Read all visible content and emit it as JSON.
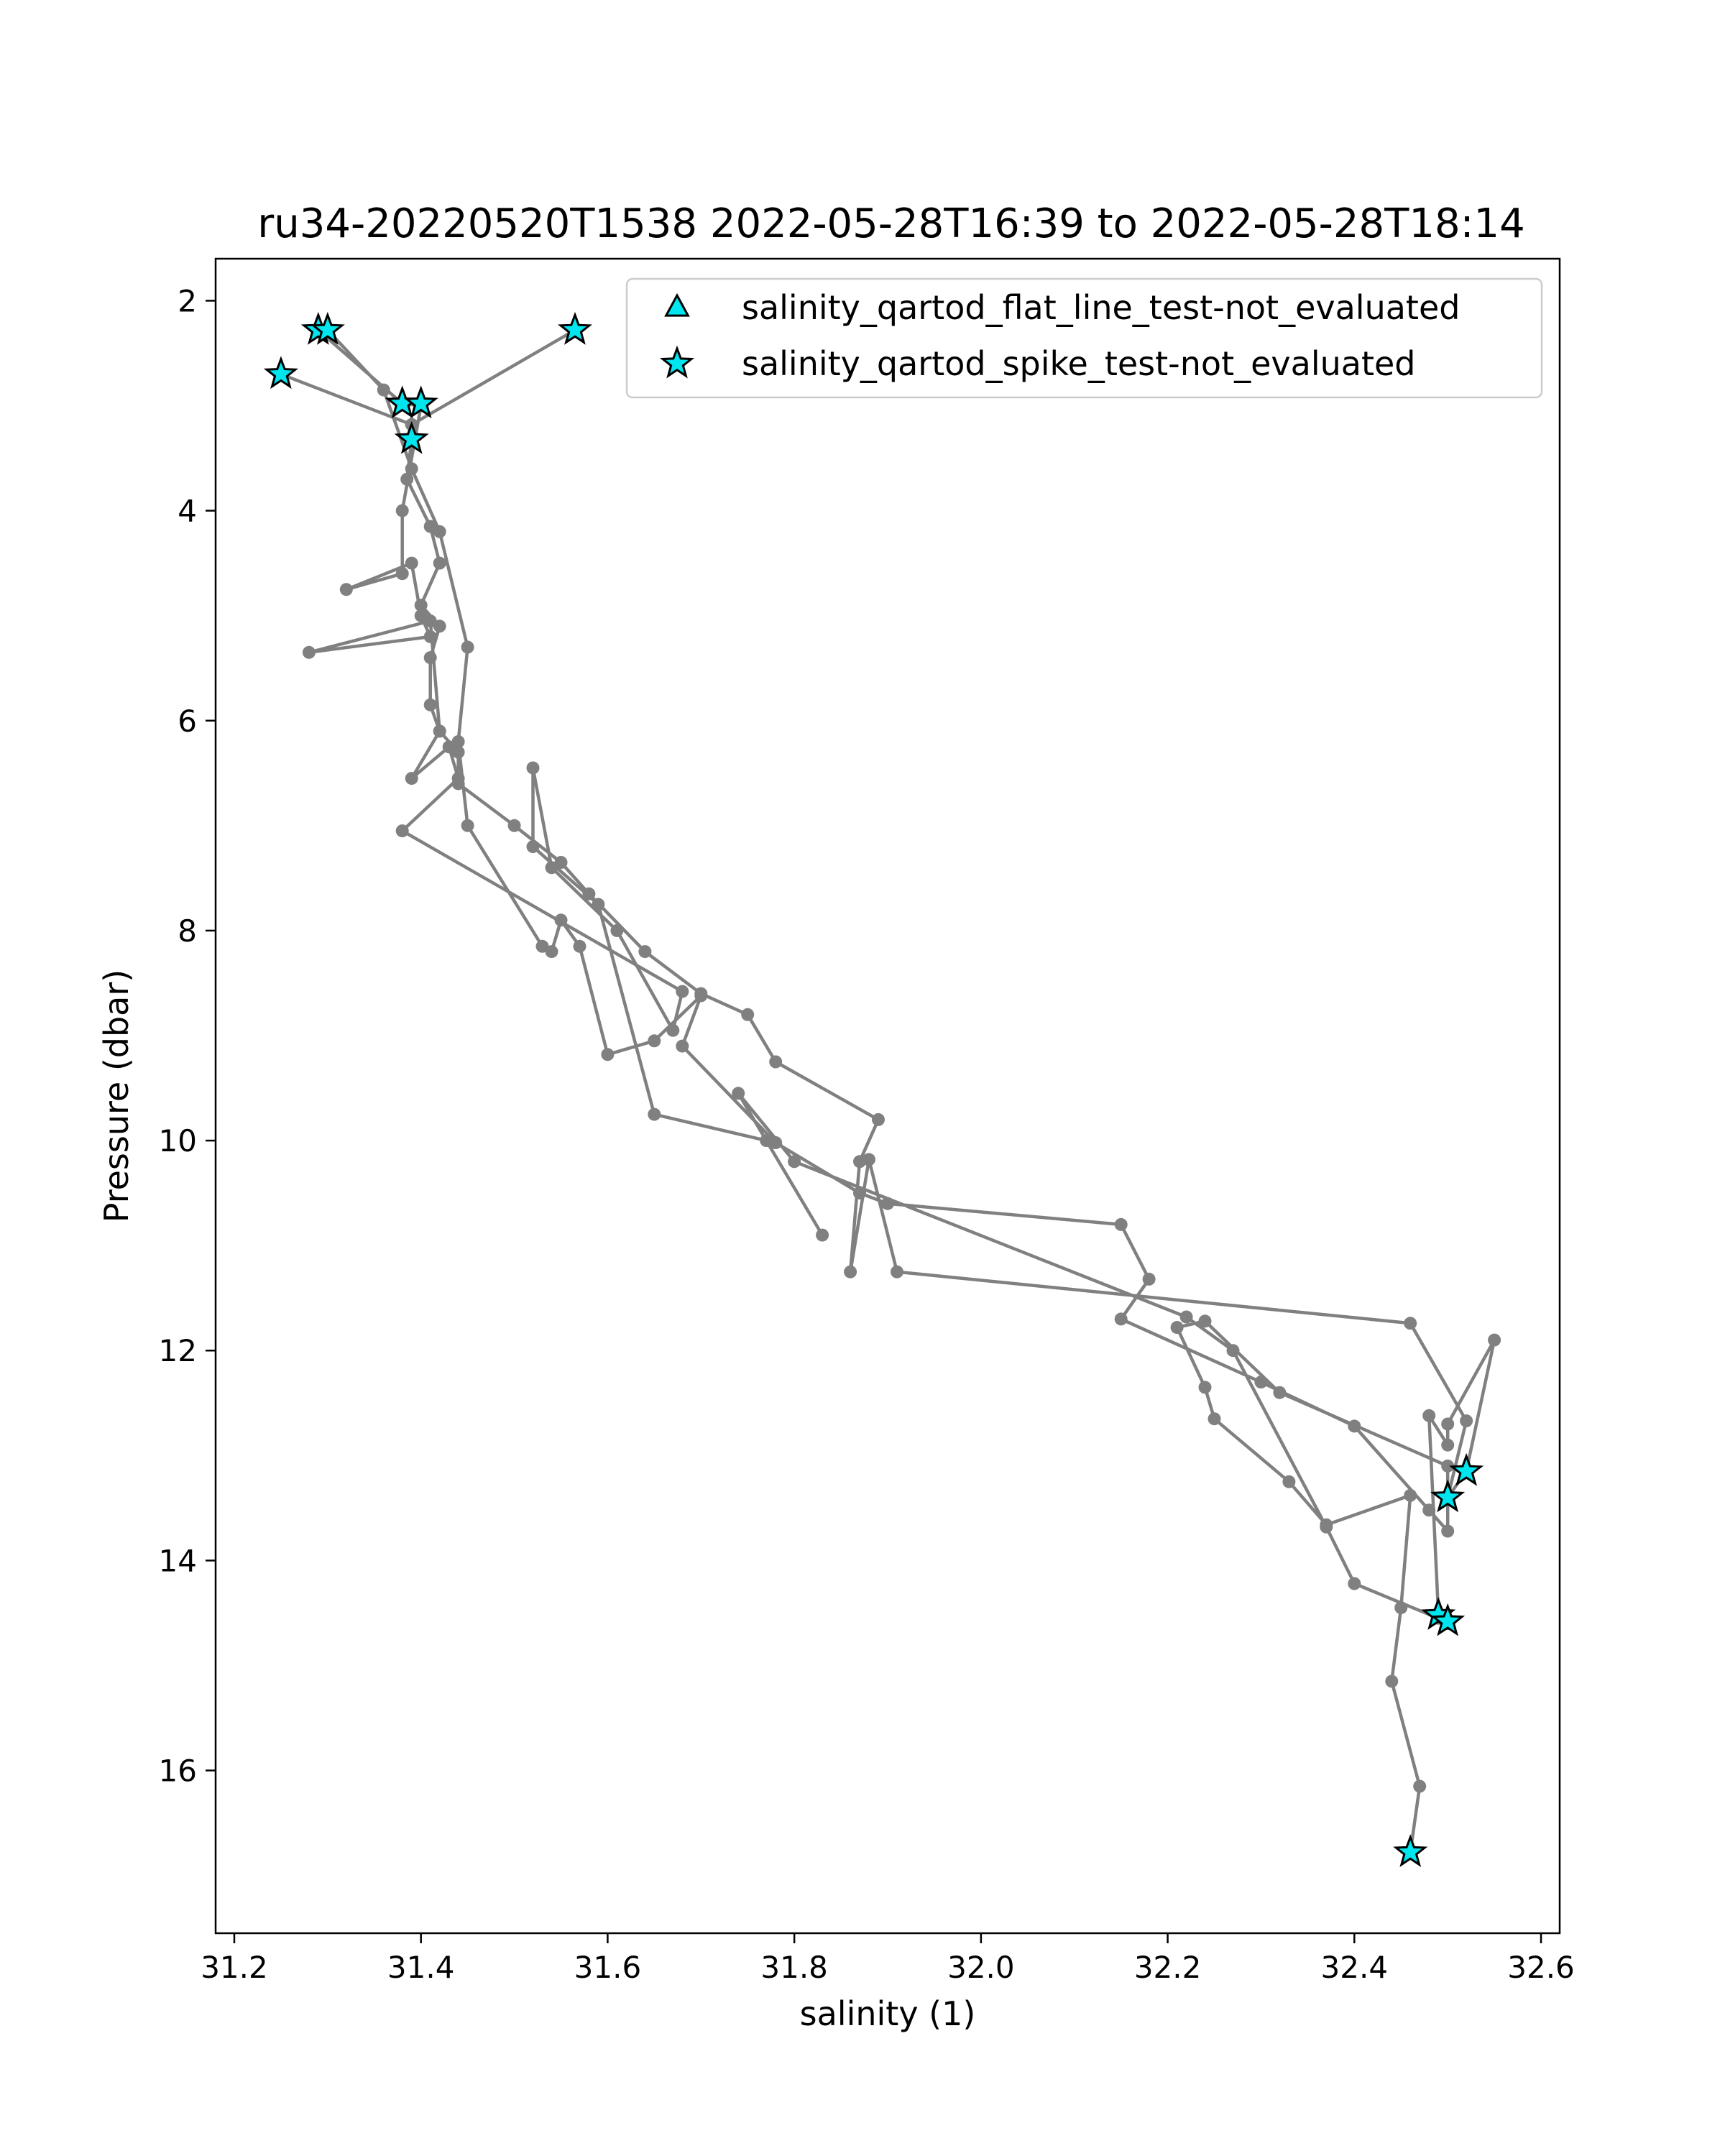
{
  "chart_data": {
    "type": "line",
    "title": "ru34-20220520T1538 2022-05-28T16:39 to 2022-05-28T18:14",
    "xlabel": "salinity (1)",
    "ylabel": "Pressure (dbar)",
    "xlim": [
      31.18,
      32.62
    ],
    "ylim": [
      17.55,
      1.6
    ],
    "y_inverted": true,
    "x_ticks": [
      "31.2",
      "31.4",
      "31.6",
      "31.8",
      "32.0",
      "32.2",
      "32.4",
      "32.6"
    ],
    "y_ticks": [
      "2",
      "4",
      "6",
      "8",
      "10",
      "12",
      "14",
      "16"
    ],
    "grid": false,
    "legend_position": "top-right",
    "colors": {
      "profile": "#808080",
      "flag_fill": "#00e5ee",
      "flag_edge": "#000000"
    },
    "legend": [
      {
        "label": "salinity_qartod_flat_line_test-not_evaluated",
        "marker": "triangle"
      },
      {
        "label": "salinity_qartod_spike_test-not_evaluated",
        "marker": "star"
      }
    ],
    "profile": [
      [
        31.565,
        2.28
      ],
      [
        31.39,
        3.18
      ],
      [
        31.25,
        2.7
      ],
      [
        31.39,
        3.18
      ],
      [
        31.39,
        3.32
      ],
      [
        31.385,
        3.7
      ],
      [
        31.41,
        4.15
      ],
      [
        31.42,
        4.5
      ],
      [
        31.4,
        4.9
      ],
      [
        31.42,
        5.1
      ],
      [
        31.41,
        5.4
      ],
      [
        31.41,
        5.85
      ],
      [
        31.42,
        6.1
      ],
      [
        31.44,
        6.3
      ],
      [
        31.44,
        6.6
      ],
      [
        31.5,
        7.0
      ],
      [
        31.55,
        7.35
      ],
      [
        31.58,
        7.65
      ],
      [
        31.64,
        8.2
      ],
      [
        31.7,
        8.6
      ],
      [
        31.75,
        8.8
      ],
      [
        31.78,
        9.25
      ],
      [
        31.89,
        9.8
      ],
      [
        31.87,
        10.2
      ],
      [
        31.86,
        11.25
      ],
      [
        31.88,
        10.18
      ],
      [
        31.91,
        11.25
      ],
      [
        32.46,
        11.74
      ],
      [
        32.52,
        12.67
      ],
      [
        32.5,
        13.4
      ],
      [
        32.5,
        13.72
      ],
      [
        32.48,
        13.52
      ],
      [
        32.4,
        12.72
      ],
      [
        32.3,
        12.3
      ],
      [
        32.15,
        11.7
      ],
      [
        32.18,
        11.32
      ],
      [
        32.15,
        10.8
      ],
      [
        31.9,
        10.6
      ],
      [
        31.87,
        10.5
      ],
      [
        31.78,
        10.02
      ],
      [
        31.68,
        9.1
      ],
      [
        31.7,
        8.62
      ],
      [
        31.65,
        9.05
      ],
      [
        31.6,
        9.18
      ],
      [
        31.57,
        8.15
      ],
      [
        31.55,
        7.9
      ],
      [
        31.54,
        8.2
      ],
      [
        31.53,
        8.15
      ],
      [
        31.45,
        7.0
      ],
      [
        31.44,
        6.2
      ],
      [
        31.45,
        5.3
      ],
      [
        31.42,
        4.2
      ],
      [
        31.39,
        3.6
      ],
      [
        31.36,
        2.85
      ],
      [
        31.3,
        2.28
      ],
      [
        31.29,
        2.28
      ],
      [
        31.38,
        2.98
      ],
      [
        31.4,
        3.0
      ],
      [
        31.38,
        4.0
      ],
      [
        31.38,
        4.6
      ],
      [
        31.32,
        4.75
      ],
      [
        31.39,
        4.5
      ],
      [
        31.4,
        5.0
      ],
      [
        31.41,
        5.2
      ],
      [
        31.28,
        5.35
      ],
      [
        31.41,
        5.05
      ],
      [
        31.42,
        6.1
      ],
      [
        31.39,
        6.55
      ],
      [
        31.43,
        6.25
      ],
      [
        31.44,
        6.55
      ],
      [
        31.38,
        7.05
      ],
      [
        31.68,
        8.58
      ],
      [
        31.67,
        8.95
      ],
      [
        31.61,
        8.0
      ],
      [
        31.54,
        7.4
      ],
      [
        31.52,
        6.45
      ],
      [
        31.52,
        7.2
      ],
      [
        31.59,
        7.75
      ],
      [
        31.65,
        9.75
      ],
      [
        31.77,
        10.0
      ],
      [
        31.83,
        10.9
      ],
      [
        31.74,
        9.55
      ],
      [
        31.8,
        10.2
      ],
      [
        32.22,
        11.68
      ],
      [
        32.27,
        12.0
      ],
      [
        32.37,
        13.68
      ],
      [
        32.4,
        14.22
      ],
      [
        32.49,
        14.55
      ],
      [
        32.5,
        14.6
      ],
      [
        32.49,
        14.5
      ],
      [
        32.48,
        12.62
      ],
      [
        32.5,
        12.9
      ],
      [
        32.5,
        12.7
      ],
      [
        32.55,
        11.9
      ],
      [
        32.52,
        13.15
      ],
      [
        32.5,
        13.4
      ],
      [
        32.5,
        13.1
      ],
      [
        32.32,
        12.4
      ],
      [
        32.24,
        11.72
      ],
      [
        32.21,
        11.78
      ],
      [
        32.24,
        12.35
      ],
      [
        32.25,
        12.65
      ],
      [
        32.33,
        13.25
      ],
      [
        32.37,
        13.66
      ],
      [
        32.46,
        13.38
      ],
      [
        32.45,
        14.45
      ],
      [
        32.44,
        15.15
      ],
      [
        32.47,
        16.15
      ],
      [
        32.46,
        16.78
      ]
    ],
    "flagged_points": [
      [
        31.25,
        2.7
      ],
      [
        31.29,
        2.28
      ],
      [
        31.3,
        2.28
      ],
      [
        31.565,
        2.28
      ],
      [
        31.38,
        2.98
      ],
      [
        31.4,
        2.98
      ],
      [
        31.39,
        3.32
      ],
      [
        32.52,
        13.15
      ],
      [
        32.5,
        13.4
      ],
      [
        32.49,
        14.52
      ],
      [
        32.5,
        14.58
      ],
      [
        32.46,
        16.78
      ]
    ]
  }
}
